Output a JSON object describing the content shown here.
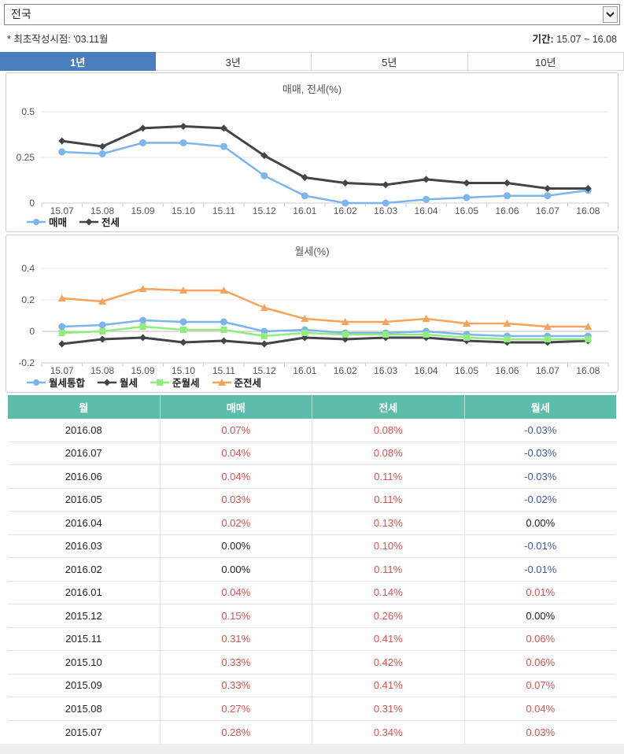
{
  "region_select": {
    "value": "전국"
  },
  "meta": {
    "note": "* 최초작성시점: '03.11월",
    "period_label": "기간:",
    "period_value": " 15.07 ~ 16.08"
  },
  "tabs": [
    {
      "label": "1년",
      "active": true
    },
    {
      "label": "3년",
      "active": false
    },
    {
      "label": "5년",
      "active": false
    },
    {
      "label": "10년",
      "active": false
    }
  ],
  "colors": {
    "tab_active": "#4a7ebf",
    "table_header": "#5ebcab",
    "positive_text": "#d9534f",
    "negative_text": "#3c5bb0",
    "series_blue": "#7cb5ec",
    "series_black": "#434348",
    "series_green": "#90ed7d",
    "series_orange": "#f7a35c"
  },
  "chart_data": [
    {
      "type": "line",
      "title": "매매, 전세(%)",
      "categories": [
        "15.07",
        "15.08",
        "15.09",
        "15.10",
        "15.11",
        "15.12",
        "16.01",
        "16.02",
        "16.03",
        "16.04",
        "16.05",
        "16.06",
        "16.07",
        "16.08"
      ],
      "series": [
        {
          "name": "매매",
          "marker": "circle",
          "color": "#7cb5ec",
          "values": [
            0.28,
            0.27,
            0.33,
            0.33,
            0.31,
            0.15,
            0.04,
            0.0,
            0.0,
            0.02,
            0.03,
            0.04,
            0.04,
            0.07
          ]
        },
        {
          "name": "전세",
          "marker": "diamond",
          "color": "#434348",
          "values": [
            0.34,
            0.31,
            0.41,
            0.42,
            0.41,
            0.26,
            0.14,
            0.11,
            0.1,
            0.13,
            0.11,
            0.11,
            0.08,
            0.08
          ]
        }
      ],
      "ylim": [
        0,
        0.5
      ],
      "yticks": [
        0,
        0.25,
        0.5
      ],
      "grid": true,
      "legend_position": "bottom-left"
    },
    {
      "type": "line",
      "title": "월세(%)",
      "categories": [
        "15.07",
        "15.08",
        "15.09",
        "15.10",
        "15.11",
        "15.12",
        "16.01",
        "16.02",
        "16.03",
        "16.04",
        "16.05",
        "16.06",
        "16.07",
        "16.08"
      ],
      "series": [
        {
          "name": "월세통합",
          "marker": "circle",
          "color": "#7cb5ec",
          "values": [
            0.03,
            0.04,
            0.07,
            0.06,
            0.06,
            0.0,
            0.01,
            -0.01,
            -0.01,
            0.0,
            -0.02,
            -0.03,
            -0.03,
            -0.03
          ]
        },
        {
          "name": "월세",
          "marker": "diamond",
          "color": "#434348",
          "values": [
            -0.08,
            -0.05,
            -0.04,
            -0.07,
            -0.06,
            -0.08,
            -0.04,
            -0.05,
            -0.04,
            -0.04,
            -0.06,
            -0.07,
            -0.07,
            -0.06
          ]
        },
        {
          "name": "준월세",
          "marker": "square",
          "color": "#90ed7d",
          "values": [
            -0.01,
            0.0,
            0.03,
            0.01,
            0.01,
            -0.03,
            -0.01,
            -0.02,
            -0.02,
            -0.02,
            -0.04,
            -0.05,
            -0.05,
            -0.05
          ]
        },
        {
          "name": "준전세",
          "marker": "triangle",
          "color": "#f7a35c",
          "values": [
            0.21,
            0.19,
            0.27,
            0.26,
            0.26,
            0.15,
            0.08,
            0.06,
            0.06,
            0.08,
            0.05,
            0.05,
            0.03,
            0.03
          ]
        }
      ],
      "ylim": [
        -0.2,
        0.4
      ],
      "yticks": [
        -0.2,
        0,
        0.2,
        0.4
      ],
      "grid": true,
      "legend_position": "bottom-left"
    }
  ],
  "table": {
    "columns": [
      "월",
      "매매",
      "전세",
      "월세"
    ],
    "rows": [
      {
        "month": "2016.08",
        "sale": "0.07%",
        "jeonse": "0.08%",
        "monthly": "-0.03%"
      },
      {
        "month": "2016.07",
        "sale": "0.04%",
        "jeonse": "0.08%",
        "monthly": "-0.03%"
      },
      {
        "month": "2016.06",
        "sale": "0.04%",
        "jeonse": "0.11%",
        "monthly": "-0.03%"
      },
      {
        "month": "2016.05",
        "sale": "0.03%",
        "jeonse": "0.11%",
        "monthly": "-0.02%"
      },
      {
        "month": "2016.04",
        "sale": "0.02%",
        "jeonse": "0.13%",
        "monthly": "0.00%"
      },
      {
        "month": "2016.03",
        "sale": "0.00%",
        "jeonse": "0.10%",
        "monthly": "-0.01%"
      },
      {
        "month": "2016.02",
        "sale": "0.00%",
        "jeonse": "0.11%",
        "monthly": "-0.01%"
      },
      {
        "month": "2016.01",
        "sale": "0.04%",
        "jeonse": "0.14%",
        "monthly": "0.01%"
      },
      {
        "month": "2015.12",
        "sale": "0.15%",
        "jeonse": "0.26%",
        "monthly": "0.00%"
      },
      {
        "month": "2015.11",
        "sale": "0.31%",
        "jeonse": "0.41%",
        "monthly": "0.06%"
      },
      {
        "month": "2015.10",
        "sale": "0.33%",
        "jeonse": "0.42%",
        "monthly": "0.06%"
      },
      {
        "month": "2015.09",
        "sale": "0.33%",
        "jeonse": "0.41%",
        "monthly": "0.07%"
      },
      {
        "month": "2015.08",
        "sale": "0.27%",
        "jeonse": "0.31%",
        "monthly": "0.04%"
      },
      {
        "month": "2015.07",
        "sale": "0.28%",
        "jeonse": "0.34%",
        "monthly": "0.03%"
      }
    ]
  }
}
